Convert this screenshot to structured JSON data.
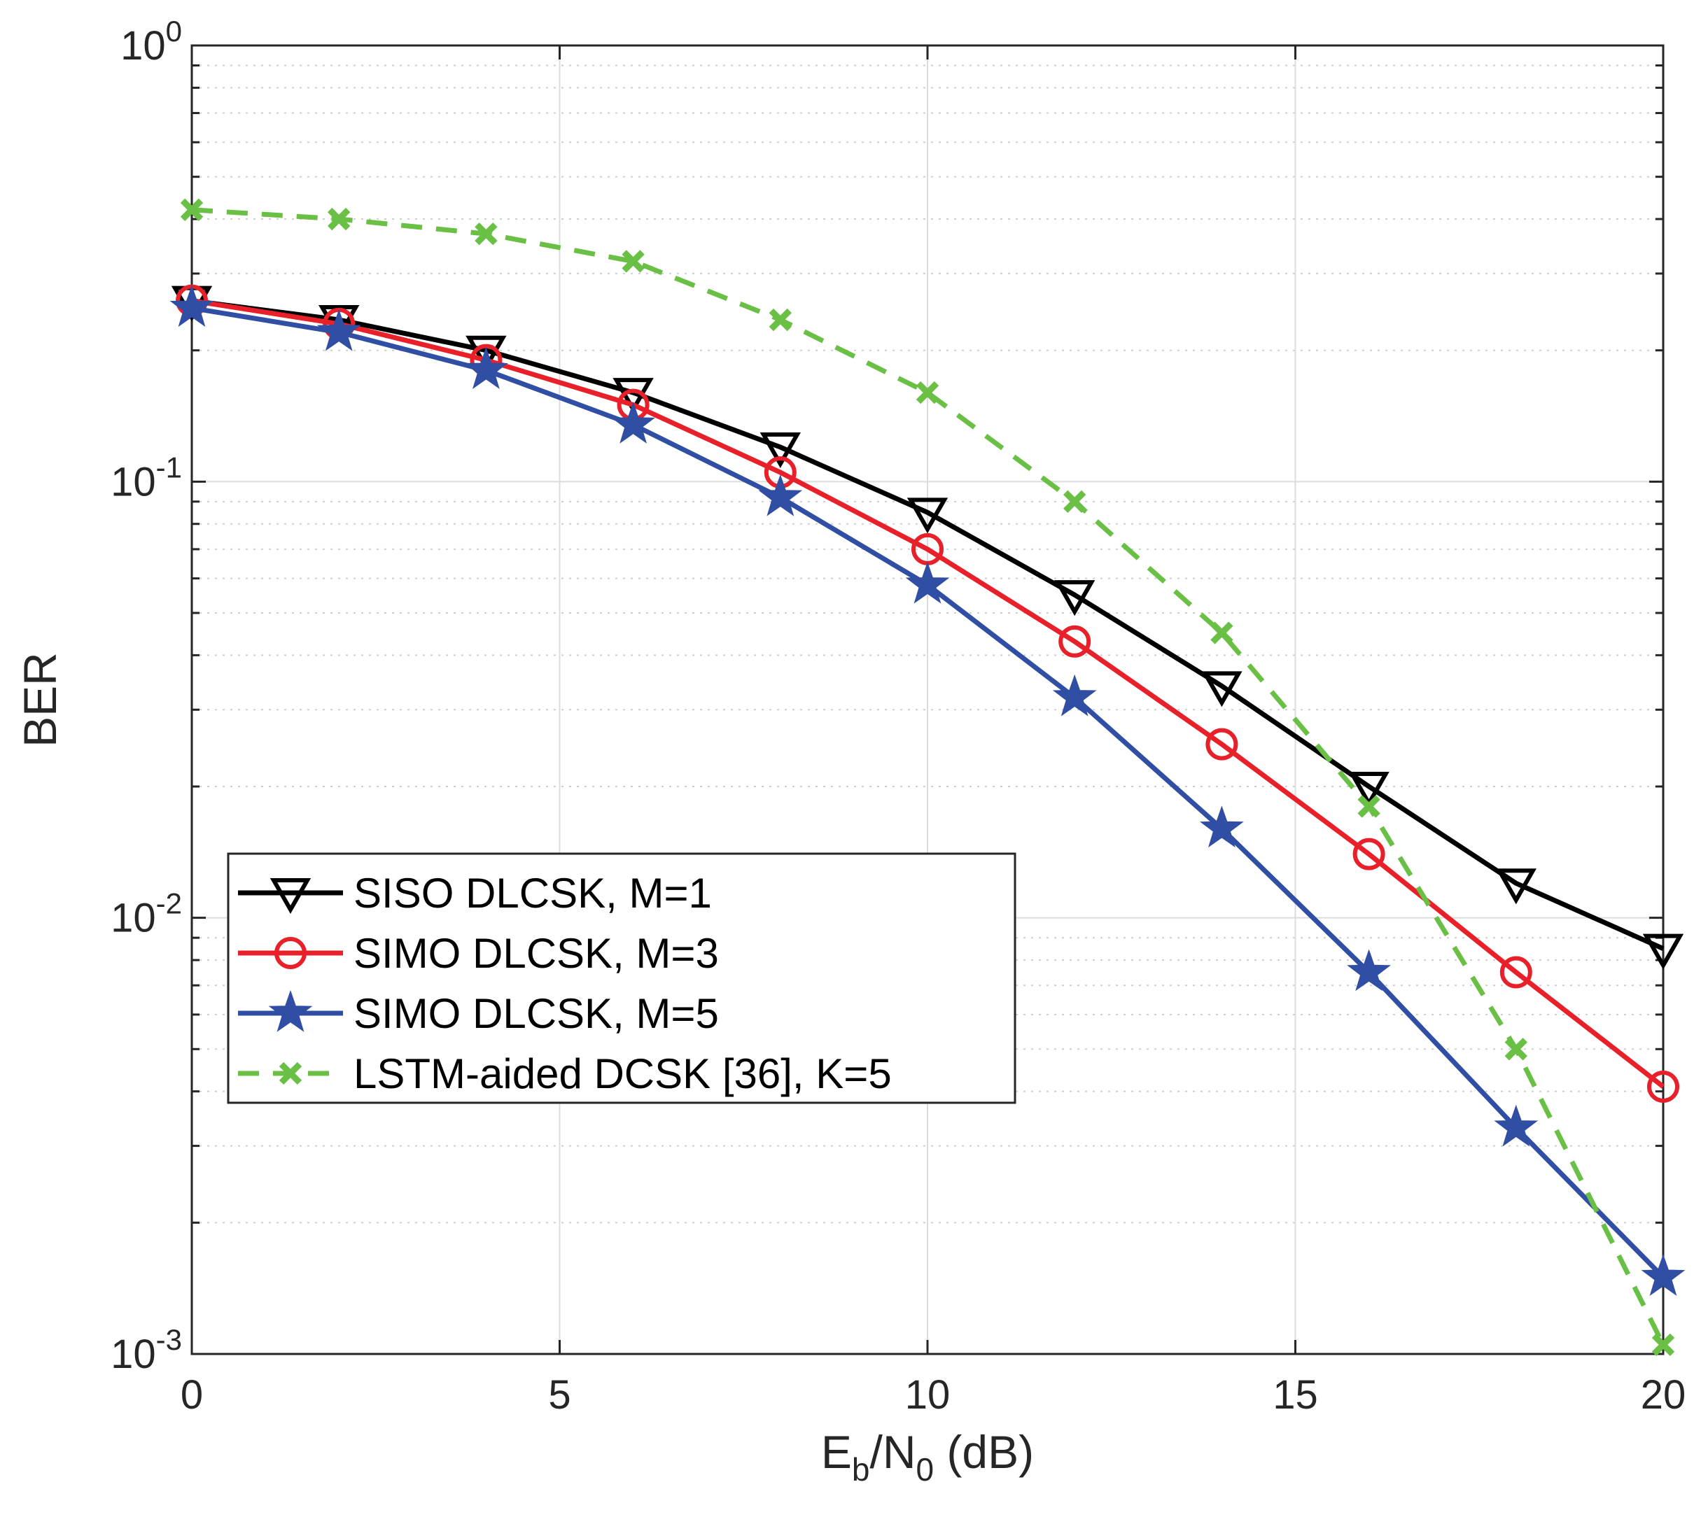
{
  "chart_data": {
    "type": "line",
    "title": "",
    "xlabel": {
      "main": "E",
      "sub1": "b",
      "mid": "/N",
      "sub2": "0",
      "tail": " (dB)"
    },
    "ylabel": "BER",
    "xlim": [
      0,
      20
    ],
    "ylim": [
      0.001,
      1
    ],
    "yscale": "log",
    "grid": true,
    "legend_position": "lower-left",
    "x_ticks": [
      {
        "value": 0,
        "label": "0"
      },
      {
        "value": 5,
        "label": "5"
      },
      {
        "value": 10,
        "label": "10"
      },
      {
        "value": 15,
        "label": "15"
      },
      {
        "value": 20,
        "label": "20"
      }
    ],
    "y_ticks": [
      {
        "value": 1,
        "base": "10",
        "exp": "0"
      },
      {
        "value": 0.1,
        "base": "10",
        "exp": "-1"
      },
      {
        "value": 0.01,
        "base": "10",
        "exp": "-2"
      },
      {
        "value": 0.001,
        "base": "10",
        "exp": "-3"
      }
    ],
    "x": [
      0,
      2,
      4,
      6,
      8,
      10,
      12,
      14,
      16,
      18,
      20
    ],
    "series": [
      {
        "name": "SISO DLCSK, M=1",
        "color": "#000000",
        "marker": "triangle-down",
        "line": "solid",
        "values": [
          0.26,
          0.235,
          0.2,
          0.16,
          0.12,
          0.085,
          0.055,
          0.034,
          0.02,
          0.012,
          0.0085
        ]
      },
      {
        "name": "SIMO DLCSK, M=3",
        "color": "#e8202a",
        "marker": "circle",
        "line": "solid",
        "values": [
          0.26,
          0.23,
          0.19,
          0.15,
          0.105,
          0.07,
          0.043,
          0.025,
          0.014,
          0.0075,
          0.0041
        ]
      },
      {
        "name": "SIMO DLCSK, M=5",
        "color": "#2f4ea4",
        "marker": "star",
        "line": "solid",
        "values": [
          0.25,
          0.22,
          0.18,
          0.135,
          0.092,
          0.058,
          0.032,
          0.016,
          0.0075,
          0.0033,
          0.0015
        ]
      },
      {
        "name": "LSTM-aided DCSK [36], K=5",
        "color": "#6abf45",
        "marker": "x",
        "line": "dashed",
        "values": [
          0.42,
          0.4,
          0.37,
          0.32,
          0.235,
          0.16,
          0.09,
          0.045,
          0.018,
          0.005,
          0.00105
        ]
      }
    ]
  }
}
